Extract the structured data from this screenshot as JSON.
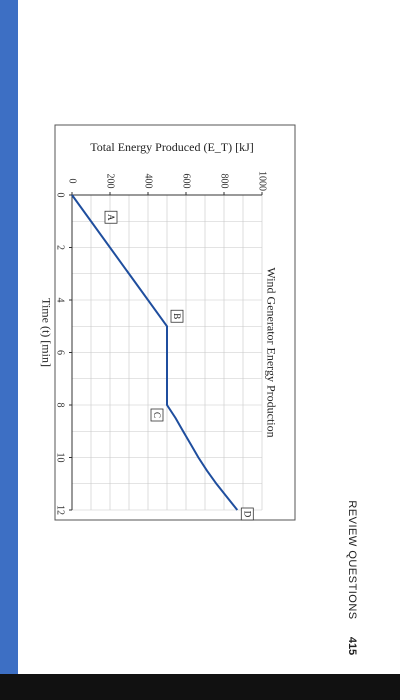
{
  "page": {
    "header_title": "REVIEW QUESTIONS",
    "page_number": "415",
    "accent_color": "#3d6fc4"
  },
  "chart_data": {
    "type": "line",
    "title": "Wind Generator Energy Production",
    "xlabel": "Time (t) [min]",
    "ylabel": "Total Energy Produced (E_T) [kJ]",
    "x_ticks": [
      0,
      2,
      4,
      6,
      8,
      10,
      12
    ],
    "y_ticks": [
      0,
      200,
      400,
      600,
      800,
      1000
    ],
    "xlim": [
      0,
      12
    ],
    "ylim": [
      0,
      1000
    ],
    "grid": true,
    "orientation": "rotated-90-clockwise",
    "series": [
      {
        "color": "#1f4e9e",
        "points": [
          [
            0,
            0
          ],
          [
            5,
            500
          ],
          [
            8,
            500
          ],
          [
            8.5,
            545
          ],
          [
            9,
            585
          ],
          [
            9.5,
            625
          ],
          [
            10,
            665
          ],
          [
            10.5,
            710
          ],
          [
            11,
            760
          ],
          [
            11.5,
            815
          ],
          [
            12,
            870
          ]
        ]
      }
    ],
    "annotations": [
      {
        "label": "A",
        "x": 1,
        "y": 100
      },
      {
        "label": "B",
        "x": 5,
        "y": 500
      },
      {
        "label": "C",
        "x": 8,
        "y": 500
      },
      {
        "label": "D",
        "x": 12,
        "y": 870
      }
    ]
  }
}
